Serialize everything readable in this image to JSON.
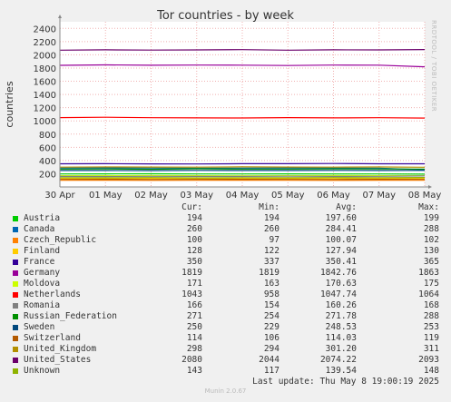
{
  "chart_data": {
    "type": "line",
    "title": "Tor countries - by week",
    "ylabel": "countries",
    "xlabel": "",
    "ylim": [
      0,
      2500
    ],
    "yticks": [
      200,
      400,
      600,
      800,
      1000,
      1200,
      1400,
      1600,
      1800,
      2000,
      2200,
      2400
    ],
    "x": [
      "30 Apr",
      "01 May",
      "02 May",
      "03 May",
      "04 May",
      "05 May",
      "06 May",
      "07 May",
      "08 May"
    ],
    "grid": true,
    "legend_position": "bottom",
    "series": [
      {
        "name": "Austria",
        "color": "#00cc00",
        "cur": "194",
        "min": "194",
        "avg": "197.60",
        "max": "199",
        "values": [
          196,
          198,
          199,
          197,
          196,
          198,
          197,
          196,
          194
        ]
      },
      {
        "name": "Canada",
        "color": "#0066b3",
        "cur": "260",
        "min": "260",
        "avg": "284.41",
        "max": "288",
        "values": [
          286,
          287,
          286,
          285,
          284,
          287,
          286,
          285,
          260
        ]
      },
      {
        "name": "Czech_Republic",
        "color": "#ff8000",
        "cur": "100",
        "min": "97",
        "avg": "100.07",
        "max": "102",
        "values": [
          100,
          101,
          99,
          100,
          101,
          100,
          99,
          101,
          100
        ]
      },
      {
        "name": "Finland",
        "color": "#ffcc00",
        "cur": "128",
        "min": "122",
        "avg": "127.94",
        "max": "130",
        "values": [
          128,
          127,
          129,
          126,
          128,
          129,
          127,
          128,
          128
        ]
      },
      {
        "name": "France",
        "color": "#330099",
        "cur": "350",
        "min": "337",
        "avg": "350.41",
        "max": "365",
        "values": [
          350,
          352,
          349,
          347,
          352,
          351,
          355,
          350,
          350
        ]
      },
      {
        "name": "Germany",
        "color": "#990099",
        "cur": "1819",
        "min": "1819",
        "avg": "1842.76",
        "max": "1863",
        "values": [
          1840,
          1848,
          1842,
          1845,
          1843,
          1838,
          1845,
          1843,
          1819
        ]
      },
      {
        "name": "Moldova",
        "color": "#ccff00",
        "cur": "171",
        "min": "163",
        "avg": "170.63",
        "max": "175",
        "values": [
          170,
          171,
          172,
          170,
          169,
          171,
          172,
          170,
          171
        ]
      },
      {
        "name": "Netherlands",
        "color": "#ff0000",
        "cur": "1043",
        "min": "958",
        "avg": "1047.74",
        "max": "1064",
        "values": [
          1050,
          1055,
          1048,
          1045,
          1044,
          1050,
          1046,
          1048,
          1043
        ]
      },
      {
        "name": "Romania",
        "color": "#808080",
        "cur": "166",
        "min": "154",
        "avg": "160.26",
        "max": "168",
        "values": [
          160,
          158,
          161,
          160,
          159,
          162,
          160,
          161,
          166
        ]
      },
      {
        "name": "Russian_Federation",
        "color": "#008f00",
        "cur": "271",
        "min": "254",
        "avg": "271.78",
        "max": "288",
        "values": [
          270,
          272,
          268,
          275,
          271,
          270,
          273,
          272,
          271
        ]
      },
      {
        "name": "Sweden",
        "color": "#00487d",
        "cur": "250",
        "min": "229",
        "avg": "248.53",
        "max": "253",
        "values": [
          248,
          249,
          247,
          250,
          249,
          248,
          250,
          248,
          250
        ]
      },
      {
        "name": "Switzerland",
        "color": "#b35a00",
        "cur": "114",
        "min": "106",
        "avg": "114.03",
        "max": "119",
        "values": [
          114,
          115,
          113,
          114,
          116,
          114,
          113,
          115,
          114
        ]
      },
      {
        "name": "United_Kingdom",
        "color": "#b38f00",
        "cur": "298",
        "min": "294",
        "avg": "301.20",
        "max": "311",
        "values": [
          300,
          302,
          301,
          299,
          303,
          301,
          300,
          302,
          298
        ]
      },
      {
        "name": "United_States",
        "color": "#6b006b",
        "cur": "2080",
        "min": "2044",
        "avg": "2074.22",
        "max": "2093",
        "values": [
          2070,
          2075,
          2072,
          2074,
          2078,
          2070,
          2076,
          2074,
          2080
        ]
      },
      {
        "name": "Unknown",
        "color": "#8fb300",
        "cur": "143",
        "min": "117",
        "avg": "139.54",
        "max": "148",
        "values": [
          140,
          139,
          141,
          138,
          140,
          139,
          141,
          140,
          143
        ]
      }
    ]
  },
  "legend_header": {
    "cur": "Cur:",
    "min": "Min:",
    "avg": "Avg:",
    "max": "Max:"
  },
  "last_update": "Last update:  Thu May  8 19:00:19 2025",
  "side_label": "RRDTOOL / TOBI OETIKER",
  "footer": "Munin 2.0.67"
}
